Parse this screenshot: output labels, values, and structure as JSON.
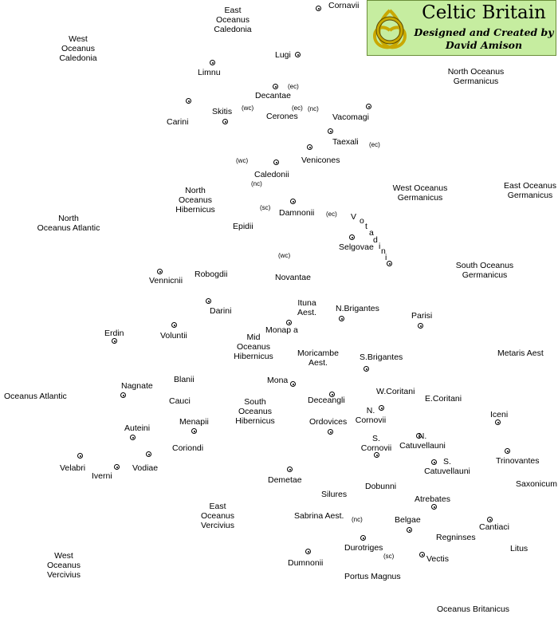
{
  "title": {
    "main": "Celtic Britain",
    "line1": "Designed and Created by",
    "line2": "David Amison",
    "accent_color": "#c6eda0",
    "knot_color": "#c9a800",
    "icon": "celtic-knot-icon"
  },
  "labels": {
    "cornavii": "Cornavii",
    "east_oceanus_caledonia": "East\nOceanus\nCaledonia",
    "west_oceanus_caledonia": "West\nOceanus\nCaledonia",
    "lugi": "Lugi",
    "limnu": "Limnu",
    "north_oceanus_germanicus": "North Oceanus\nGermanicus",
    "decantae": "Decantae",
    "skitis": "Skitis",
    "carini": "Carini",
    "cerones": "Cerones",
    "vacomagi": "Vacomagi",
    "taexali": "Taexali",
    "venicones": "Venicones",
    "caledonii": "Caledonii",
    "west_oceanus_germanicus": "West Oceanus\nGermanicus",
    "east_oceanus_germanicus": "East Oceanus\nGermanicus",
    "north_oceanus_hibernicus": "North\nOceanus\nHibernicus",
    "north_oceanus_atlantic": "North\nOceanus Atlantic",
    "damnonii": "Damnonii",
    "epidii": "Epidii",
    "selgovae": "Selgovae",
    "south_oceanus_germanicus": "South Oceanus\nGermanicus",
    "robogdii": "Robogdii",
    "novantae": "Novantae",
    "vennicnii": "Vennicnii",
    "darini": "Darini",
    "ituna_aest": "Ituna\nAest.",
    "n_brigantes": "N.Brigantes",
    "parisi": "Parisi",
    "erdin": "Erdin",
    "voluntii": "Voluntii",
    "monapa": "Monap a",
    "mid_oceanus_hibernicus": "Mid\nOceanus\nHibernicus",
    "moricambe_aest": "Moricambe\nAest.",
    "s_brigantes": "S.Brigantes",
    "metaris_aest": "Metaris Aest",
    "blanii": "Blanii",
    "nagnate": "Nagnate",
    "mona": "Mona",
    "w_coritani": "W.Coritani",
    "oceanus_atlantic": "Oceanus Atlantic",
    "cauci": "Cauci",
    "south_oceanus_hibernicus": "South\nOceanus\nHibernicus",
    "deceangli": "Deceangli",
    "e_coritani": "E.Coritani",
    "n_cornovii": "N.\nCornovii",
    "iceni": "Iceni",
    "menapii": "Menapii",
    "ordovices": "Ordovices",
    "auteini": "Auteini",
    "n_catuvellauni": "N.\nCatuvellauni",
    "s_cornovii": "S.\nCornovii",
    "coriondi": "Coriondi",
    "trinovantes": "Trinovantes",
    "velabri": "Velabri",
    "iverni": "Iverni",
    "vodiae": "Vodiae",
    "s_catuvellauni": "S.\nCatuvellauni",
    "demetae": "Demetae",
    "silures": "Silures",
    "dobunni": "Dobunni",
    "saxonicum": "Saxonicum",
    "atrebates": "Atrebates",
    "east_oceanus_vercivius": "East\nOceanus\nVercivius",
    "sabrina_aest": "Sabrina Aest.",
    "belgae": "Belgae",
    "cantiaci": "Cantiaci",
    "regninses": "Regninses",
    "durotriges": "Durotriges",
    "litus": "Litus",
    "west_oceanus_vercivius": "West\nOceanus\nVercivius",
    "dumnonii": "Dumnonii",
    "vectis": "Vectis",
    "portus_magnus": "Portus Magnus",
    "oceanus_britanicus": "Oceanus Britanicus"
  },
  "votadini_letters": [
    "V",
    "o",
    "t",
    "a",
    "d",
    "i",
    "n",
    "i"
  ],
  "tags": {
    "ec": "(ec)",
    "nc": "(nc)",
    "wc": "(wc)",
    "sc": "(sc)"
  }
}
